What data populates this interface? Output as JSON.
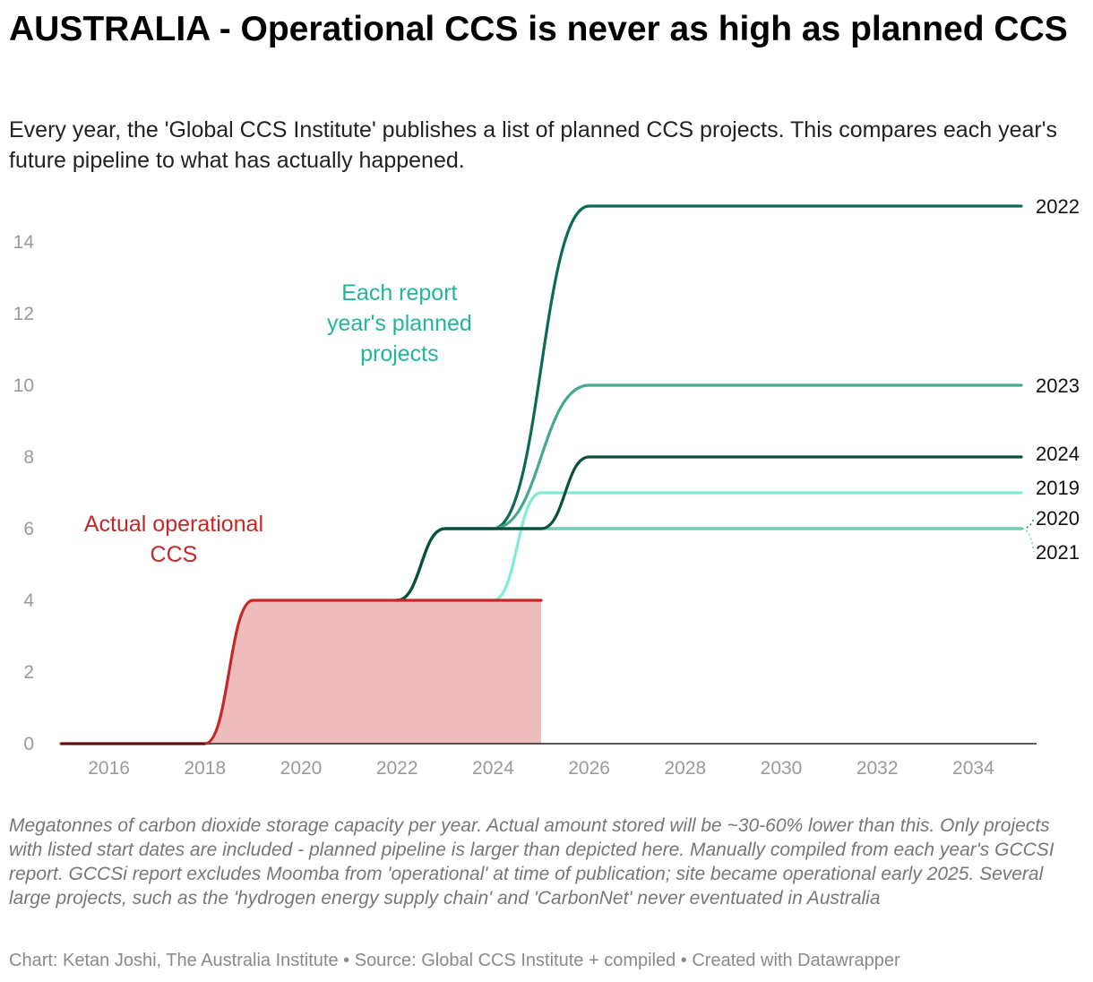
{
  "title": "AUSTRALIA - Operational CCS is never as high as planned CCS",
  "subtitle": "Every year, the 'Global CCS Institute' publishes a list of planned CCS projects. This compares each year's future pipeline to what has actually happened.",
  "notes": "Megatonnes of carbon dioxide storage capacity per year. Actual amount stored will be ~30-60% lower than this. Only projects with listed start dates are included - planned pipeline is larger than depicted here. Manually compiled from each year's GCCSI report. GCCSi report excludes Moomba from 'operational' at time of publication; site became operational early 2025. Several large projects, such as the 'hydrogen energy supply chain' and 'CarbonNet' never eventuated in Australia",
  "footer": "Chart: Ketan Joshi, The Australia Institute • Source: Global CCS Institute + compiled • Created with Datawrapper",
  "chart_data": {
    "type": "line",
    "title": "AUSTRALIA - Operational CCS is never as high as planned CCS",
    "xlabel": "",
    "ylabel": "Megatonnes of carbon dioxide storage capacity per year",
    "xlim": [
      2015,
      2035
    ],
    "ylim": [
      0,
      15
    ],
    "x_ticks": [
      2016,
      2018,
      2020,
      2022,
      2024,
      2026,
      2028,
      2030,
      2032,
      2034
    ],
    "x_tick_labels": [
      "2016",
      "2018",
      "2020",
      "2022",
      "2024",
      "2026",
      "2028",
      "2030",
      "2032",
      "2034"
    ],
    "y_ticks": [
      0,
      2,
      4,
      6,
      8,
      10,
      12,
      14
    ],
    "y_tick_labels": [
      "0",
      "2",
      "4",
      "6",
      "8",
      "10",
      "12",
      "14"
    ],
    "grid": false,
    "annotations": [
      {
        "text": "Each report year's planned projects",
        "lines": [
          "Each report",
          "year's planned",
          "projects"
        ],
        "color": "#22b59a"
      },
      {
        "text": "Actual operational CCS",
        "lines": [
          "Actual operational",
          "CCS"
        ],
        "color": "#c62828"
      }
    ],
    "actual": {
      "name": "Actual operational CCS",
      "color": "#c62828",
      "fill": "#eebcbc",
      "x": [
        2015,
        2018,
        2019,
        2025
      ],
      "y": [
        0,
        0,
        4,
        4
      ]
    },
    "series": [
      {
        "name": "2019",
        "label": "2019",
        "color": "#7fecd3",
        "x": [
          2024,
          2025,
          2035
        ],
        "y": [
          4,
          7,
          7
        ]
      },
      {
        "name": "2020",
        "label": "2020",
        "color": "#1f8a70",
        "x": [
          2022,
          2023,
          2035
        ],
        "y": [
          4,
          6,
          6
        ]
      },
      {
        "name": "2021",
        "label": "2021",
        "color": "#6fd0b8",
        "x": [
          2022,
          2023,
          2035
        ],
        "y": [
          4,
          6,
          6
        ]
      },
      {
        "name": "2022",
        "label": "2022",
        "color": "#0c6b55",
        "x": [
          2022,
          2023,
          2024,
          2026,
          2035
        ],
        "y": [
          4,
          6,
          6,
          15,
          15
        ]
      },
      {
        "name": "2023",
        "label": "2023",
        "color": "#45a890",
        "x": [
          2022,
          2023,
          2024,
          2026,
          2035
        ],
        "y": [
          4,
          6,
          6,
          10,
          10
        ]
      },
      {
        "name": "2024",
        "label": "2024",
        "color": "#0b4f3d",
        "x": [
          2022,
          2023,
          2025,
          2026,
          2035
        ],
        "y": [
          4,
          6,
          6,
          8,
          8
        ]
      }
    ]
  }
}
